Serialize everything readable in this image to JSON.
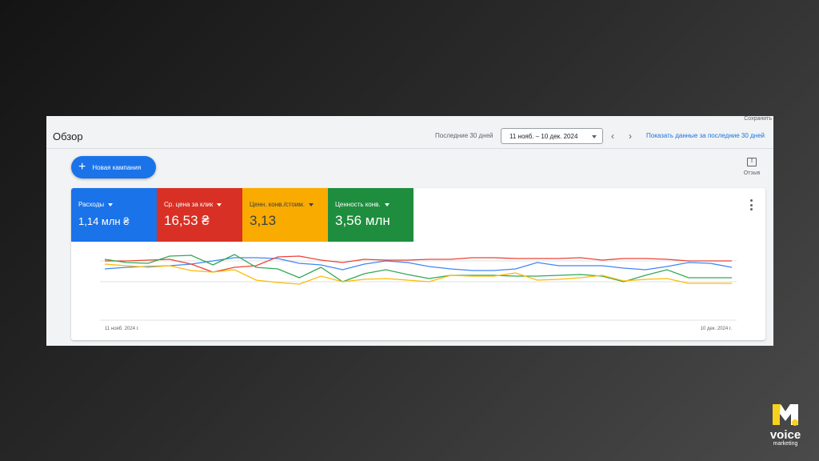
{
  "header": {
    "save_link": "Сохранить",
    "title": "Обзор",
    "range_label": "Последние 30 дней",
    "date_range": "11 нояб. – 10 дек. 2024",
    "show_data_link": "Показать данные за последние 30 дней"
  },
  "actions": {
    "new_campaign": "Новая кампания",
    "feedback": "Отзыв",
    "feedback_icon": "feedback-icon"
  },
  "metrics": [
    {
      "label": "Расходы",
      "value": "1,14 млн ₴",
      "color": "#1a73e8"
    },
    {
      "label": "Ср. цена за клик",
      "value": "16,53 ₴",
      "color": "#d93025"
    },
    {
      "label": "Ценн. конв./стоим.",
      "value": "3,13",
      "color": "#f9ab00"
    },
    {
      "label": "Ценность конв.",
      "value": "3,56 млн",
      "color": "#1e8e3e"
    }
  ],
  "chart_data": {
    "type": "line",
    "x_start_label": "11 нояб. 2024 г.",
    "x_end_label": "10 дек. 2024 г.",
    "points": 30,
    "grid": true,
    "series": [
      {
        "color": "#4285f4",
        "values": [
          56,
          58,
          59,
          60,
          62,
          66,
          70,
          70,
          69,
          63,
          61,
          55,
          62,
          66,
          64,
          59,
          56,
          54,
          54,
          56,
          64,
          60,
          60,
          60,
          57,
          55,
          59,
          64,
          63,
          58
        ]
      },
      {
        "color": "#ea4335",
        "values": [
          66,
          66,
          67,
          68,
          62,
          52,
          58,
          60,
          71,
          72,
          67,
          64,
          68,
          67,
          67,
          68,
          68,
          70,
          70,
          69,
          69,
          69,
          70,
          67,
          69,
          69,
          68,
          66,
          66,
          66
        ]
      },
      {
        "color": "#34a853",
        "values": [
          68,
          64,
          63,
          72,
          73,
          61,
          74,
          58,
          56,
          45,
          58,
          40,
          50,
          55,
          49,
          44,
          48,
          48,
          48,
          47,
          47,
          48,
          49,
          47,
          40,
          48,
          55,
          45,
          45,
          45
        ]
      },
      {
        "color": "#fbbc04",
        "values": [
          62,
          60,
          58,
          60,
          54,
          52,
          55,
          42,
          39,
          37,
          47,
          40,
          43,
          44,
          42,
          40,
          48,
          47,
          47,
          51,
          42,
          43,
          45,
          48,
          41,
          43,
          44,
          38,
          38,
          38
        ]
      }
    ]
  },
  "logo": {
    "brand": "voice",
    "sub": "marketing"
  }
}
